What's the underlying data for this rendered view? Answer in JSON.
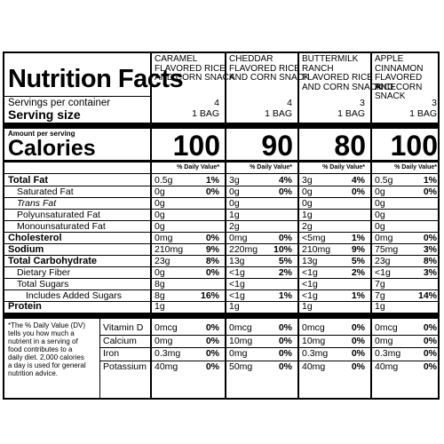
{
  "title": "Nutrition Facts",
  "servings_label": "Servings per container",
  "serving_size_label": "Serving size",
  "amount_per_serving": "Amount per serving",
  "calories_label": "Calories",
  "dv_header": "% Daily Value*",
  "products": [
    {
      "name_lines": [
        "CARAMEL",
        "FLAVORED RICE",
        "AND CORN SNACK"
      ],
      "servings": "4",
      "serving_size": "1 BAG",
      "calories": "100"
    },
    {
      "name_lines": [
        "CHEDDAR",
        "FLAVORED RICE",
        "AND CORN SNACK"
      ],
      "servings": "4",
      "serving_size": "1 BAG",
      "calories": "90"
    },
    {
      "name_lines": [
        "BUTTERMILK",
        "RANCH",
        "FLAVORED RICE",
        "AND CORN SNACK"
      ],
      "servings": "3",
      "serving_size": "1 BAG",
      "calories": "80"
    },
    {
      "name_lines": [
        "APPLE",
        "CINNAMON",
        "FLAVORED RICE",
        "AND CORN SNACK"
      ],
      "servings": "3",
      "serving_size": "1 BAG",
      "calories": "100"
    }
  ],
  "nutrients": [
    {
      "label": "Total Fat",
      "bold": true,
      "indent": 0,
      "values": [
        [
          "0.5g",
          "1%"
        ],
        [
          "3g",
          "4%"
        ],
        [
          "3g",
          "4%"
        ],
        [
          "0.5g",
          "1%"
        ]
      ]
    },
    {
      "label": "Saturated Fat",
      "bold": false,
      "indent": 1,
      "values": [
        [
          "0g",
          "0%"
        ],
        [
          "0g",
          "0%"
        ],
        [
          "0g",
          "0%"
        ],
        [
          "0g",
          "0%"
        ]
      ]
    },
    {
      "label": "Trans Fat",
      "bold": false,
      "indent": 1,
      "italic": true,
      "values": [
        [
          "0g",
          ""
        ],
        [
          "0g",
          ""
        ],
        [
          "0g",
          ""
        ],
        [
          "0g",
          ""
        ]
      ]
    },
    {
      "label": "Polyunsaturated Fat",
      "bold": false,
      "indent": 1,
      "values": [
        [
          "0g",
          ""
        ],
        [
          "1g",
          ""
        ],
        [
          "1g",
          ""
        ],
        [
          "0g",
          ""
        ]
      ]
    },
    {
      "label": "Monounsaturated Fat",
      "bold": false,
      "indent": 1,
      "values": [
        [
          "0g",
          ""
        ],
        [
          "2g",
          ""
        ],
        [
          "2g",
          ""
        ],
        [
          "0g",
          ""
        ]
      ]
    },
    {
      "label": "Cholesterol",
      "bold": true,
      "indent": 0,
      "values": [
        [
          "0mg",
          "0%"
        ],
        [
          "0mg",
          "0%"
        ],
        [
          "<5mg",
          "1%"
        ],
        [
          "0mg",
          "0%"
        ]
      ]
    },
    {
      "label": "Sodium",
      "bold": true,
      "indent": 0,
      "values": [
        [
          "210mg",
          "9%"
        ],
        [
          "220mg",
          "10%"
        ],
        [
          "210mg",
          "9%"
        ],
        [
          "75mg",
          "3%"
        ]
      ]
    },
    {
      "label": "Total Carbohydrate",
      "bold": true,
      "indent": 0,
      "values": [
        [
          "23g",
          "8%"
        ],
        [
          "13g",
          "5%"
        ],
        [
          "13g",
          "5%"
        ],
        [
          "23g",
          "8%"
        ]
      ]
    },
    {
      "label": "Dietary Fiber",
      "bold": false,
      "indent": 1,
      "values": [
        [
          "0g",
          "0%"
        ],
        [
          "<1g",
          "2%"
        ],
        [
          "<1g",
          "2%"
        ],
        [
          "<1g",
          "3%"
        ]
      ]
    },
    {
      "label": "Total Sugars",
      "bold": false,
      "indent": 1,
      "values": [
        [
          "8g",
          ""
        ],
        [
          "<1g",
          ""
        ],
        [
          "<1g",
          ""
        ],
        [
          "7g",
          ""
        ]
      ]
    },
    {
      "label": "Includes Added Sugars",
      "bold": false,
      "indent": 2,
      "values": [
        [
          "8g",
          "16%"
        ],
        [
          "<1g",
          "1%"
        ],
        [
          "<1g",
          "1%"
        ],
        [
          "7g",
          "14%"
        ]
      ]
    },
    {
      "label": "Protein",
      "bold": true,
      "indent": 0,
      "values": [
        [
          "1g",
          ""
        ],
        [
          "1g",
          ""
        ],
        [
          "1g",
          ""
        ],
        [
          "1g",
          ""
        ]
      ]
    }
  ],
  "vitamins": [
    {
      "label": "Vitamin D",
      "values": [
        [
          "0mcg",
          "0%"
        ],
        [
          "0mcg",
          "0%"
        ],
        [
          "0mcg",
          "0%"
        ],
        [
          "0mcg",
          "0%"
        ]
      ]
    },
    {
      "label": "Calcium",
      "values": [
        [
          "0mg",
          "0%"
        ],
        [
          "10mg",
          "0%"
        ],
        [
          "10mg",
          "0%"
        ],
        [
          "0mg",
          "0%"
        ]
      ]
    },
    {
      "label": "Iron",
      "values": [
        [
          "0.3mg",
          "0%"
        ],
        [
          "0mg",
          "0%"
        ],
        [
          "0.3mg",
          "0%"
        ],
        [
          "0.3mg",
          "0%"
        ]
      ]
    },
    {
      "label": "Potassium",
      "values": [
        [
          "40mg",
          "0%"
        ],
        [
          "50mg",
          "0%"
        ],
        [
          "40mg",
          "0%"
        ],
        [
          "40mg",
          "0%"
        ]
      ]
    }
  ],
  "footnote_lines": [
    "*The % Daily Value (DV)",
    "tells you how much a",
    "nutrient in a serving of",
    "food contributes to a",
    "daily diet. 2,000 calories",
    "a day is used for general",
    "nutrition advice."
  ]
}
